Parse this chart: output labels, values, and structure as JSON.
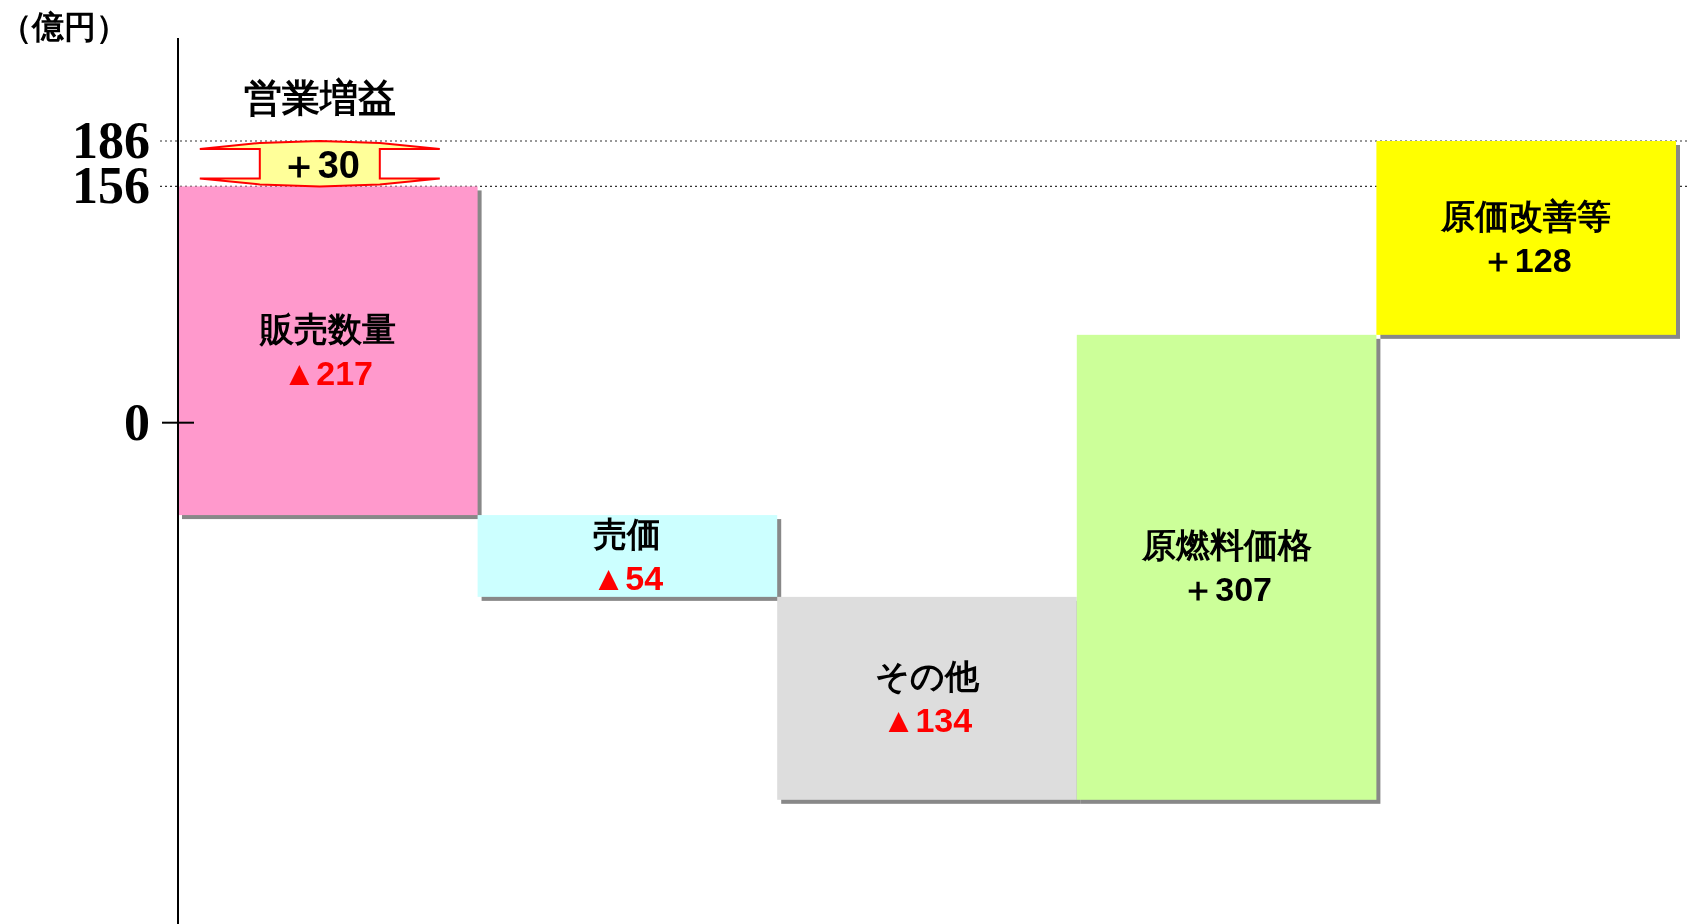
{
  "chart_data": {
    "type": "bar",
    "ylabel": "（億円）",
    "categories": [
      "販売数量",
      "売価",
      "その他",
      "原燃料価格",
      "原価改善等"
    ],
    "values": [
      -217,
      -54,
      -134,
      307,
      128
    ],
    "base": [
      156,
      -61,
      -115,
      -249,
      58
    ],
    "value_labels": [
      "▲217",
      "▲54",
      "▲134",
      "＋307",
      "＋128"
    ],
    "colors": [
      "#ff99cc",
      "#ccffff",
      "#dddddd",
      "#ccff99",
      "#ffff00"
    ],
    "ylim": [
      -331,
      254
    ],
    "yticks": [
      0,
      156,
      186
    ],
    "ref_lines": [
      {
        "axis": "y",
        "value": 186,
        "line_style": "dotted"
      },
      {
        "axis": "y",
        "value": 156,
        "line_style": "dotted"
      }
    ],
    "annotations": [
      "営業増益",
      "＋30"
    ]
  }
}
